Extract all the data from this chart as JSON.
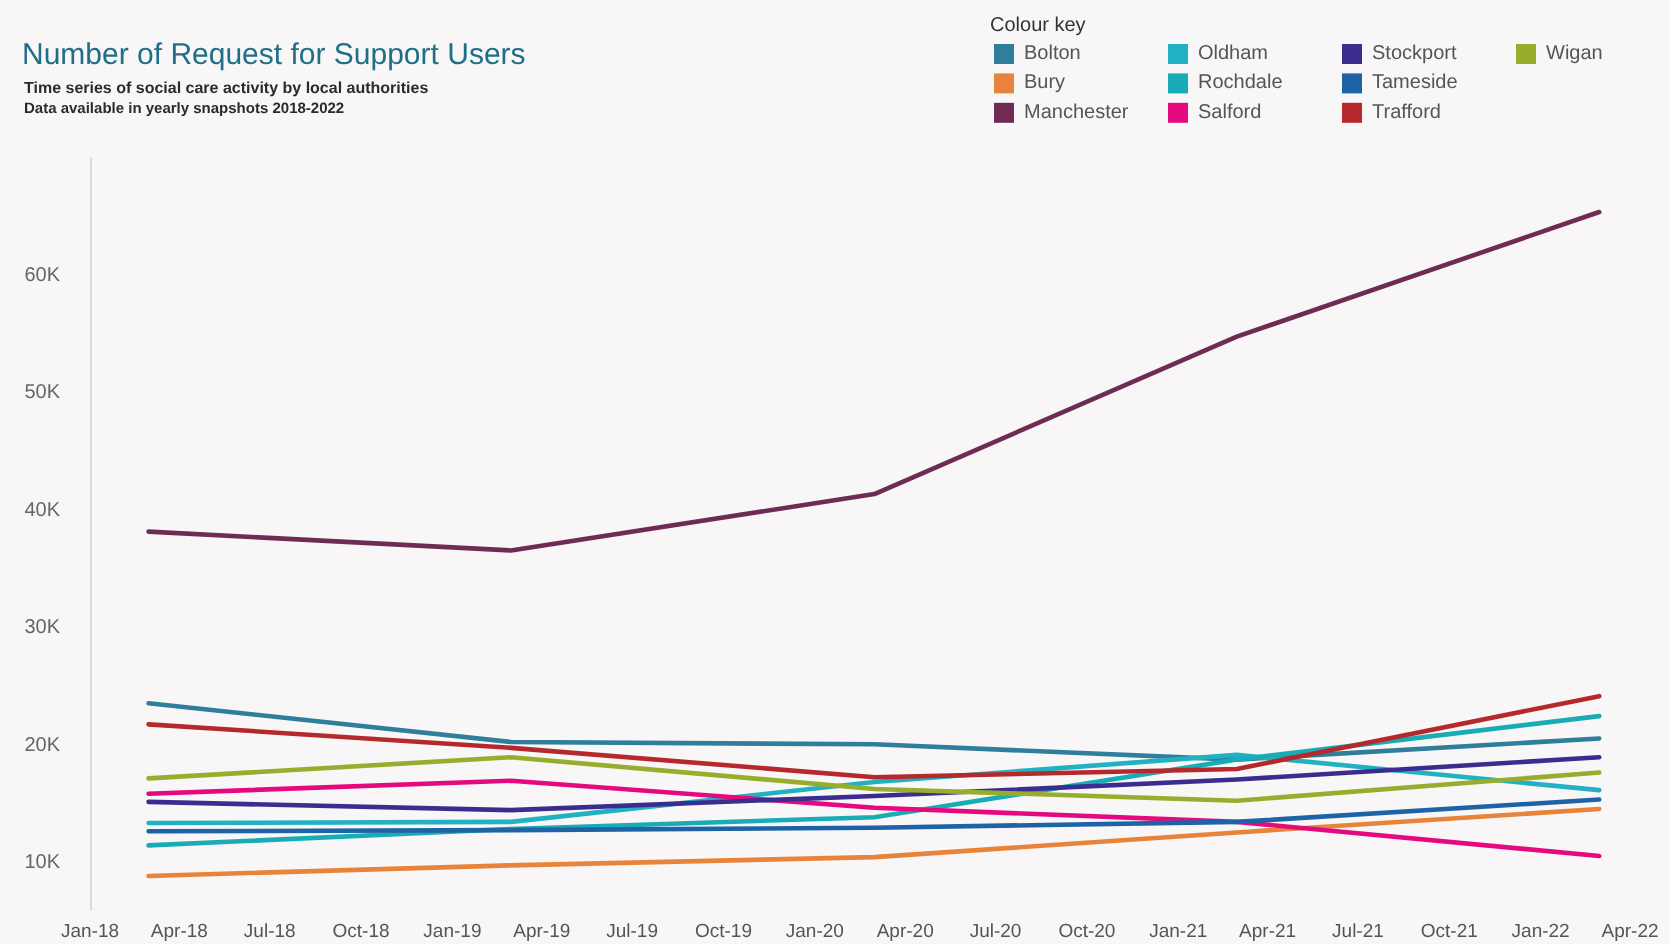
{
  "chart_data": {
    "type": "line",
    "title": "Number of Request for Support Users",
    "subtitle": "Time series of social care activity by local authorities",
    "annotations": [
      "Data available in yearly snapshots 2018-2022"
    ],
    "legend_title": "Colour key",
    "legend": "top right",
    "grid": false,
    "marker": "none",
    "x": [
      "2018-03",
      "2019-03",
      "2020-03",
      "2021-03",
      "2022-03"
    ],
    "xlim": [
      "2018-01",
      "2022-04"
    ],
    "xticks": [
      {
        "value": "2018-01",
        "label": "Jan-18"
      },
      {
        "value": "2018-04",
        "label": "Apr-18"
      },
      {
        "value": "2018-07",
        "label": "Jul-18"
      },
      {
        "value": "2018-10",
        "label": "Oct-18"
      },
      {
        "value": "2019-01",
        "label": "Jan-19"
      },
      {
        "value": "2019-04",
        "label": "Apr-19"
      },
      {
        "value": "2019-07",
        "label": "Jul-19"
      },
      {
        "value": "2019-10",
        "label": "Oct-19"
      },
      {
        "value": "2020-01",
        "label": "Jan-20"
      },
      {
        "value": "2020-04",
        "label": "Apr-20"
      },
      {
        "value": "2020-07",
        "label": "Jul-20"
      },
      {
        "value": "2020-10",
        "label": "Oct-20"
      },
      {
        "value": "2021-01",
        "label": "Jan-21"
      },
      {
        "value": "2021-04",
        "label": "Apr-21"
      },
      {
        "value": "2021-07",
        "label": "Jul-21"
      },
      {
        "value": "2021-10",
        "label": "Oct-21"
      },
      {
        "value": "2022-01",
        "label": "Jan-22"
      },
      {
        "value": "2022-04",
        "label": "Apr-22"
      }
    ],
    "ylim": [
      6000,
      70000
    ],
    "yticks": [
      {
        "value": 10000,
        "label": "10K"
      },
      {
        "value": 20000,
        "label": "20K"
      },
      {
        "value": 30000,
        "label": "30K"
      },
      {
        "value": 40000,
        "label": "40K"
      },
      {
        "value": 50000,
        "label": "50K"
      },
      {
        "value": 60000,
        "label": "60K"
      }
    ],
    "series": [
      {
        "name": "Bolton",
        "color": "#2e7e9c",
        "values": [
          23600,
          20300,
          20100,
          18800,
          20600
        ]
      },
      {
        "name": "Bury",
        "color": "#e8843a",
        "values": [
          8900,
          9800,
          10500,
          12600,
          14600
        ]
      },
      {
        "name": "Manchester",
        "color": "#6e2c55",
        "values": [
          38200,
          36600,
          41400,
          54800,
          65400
        ]
      },
      {
        "name": "Oldham",
        "color": "#22b1c2",
        "values": [
          13400,
          13500,
          16900,
          19200,
          16200
        ]
      },
      {
        "name": "Rochdale",
        "color": "#19abb6",
        "values": [
          11500,
          12900,
          13900,
          18800,
          22500
        ]
      },
      {
        "name": "Salford",
        "color": "#e5097f",
        "values": [
          15900,
          17000,
          14700,
          13500,
          10600
        ]
      },
      {
        "name": "Stockport",
        "color": "#3b2d8f",
        "values": [
          15200,
          14500,
          15700,
          17100,
          19000
        ]
      },
      {
        "name": "Tameside",
        "color": "#1d63a6",
        "values": [
          12700,
          12800,
          13000,
          13500,
          15400
        ]
      },
      {
        "name": "Trafford",
        "color": "#b5282c",
        "values": [
          21800,
          19800,
          17300,
          18000,
          24200
        ]
      },
      {
        "name": "Wigan",
        "color": "#97ad2c",
        "values": [
          17200,
          19000,
          16300,
          15300,
          17700
        ]
      }
    ]
  }
}
